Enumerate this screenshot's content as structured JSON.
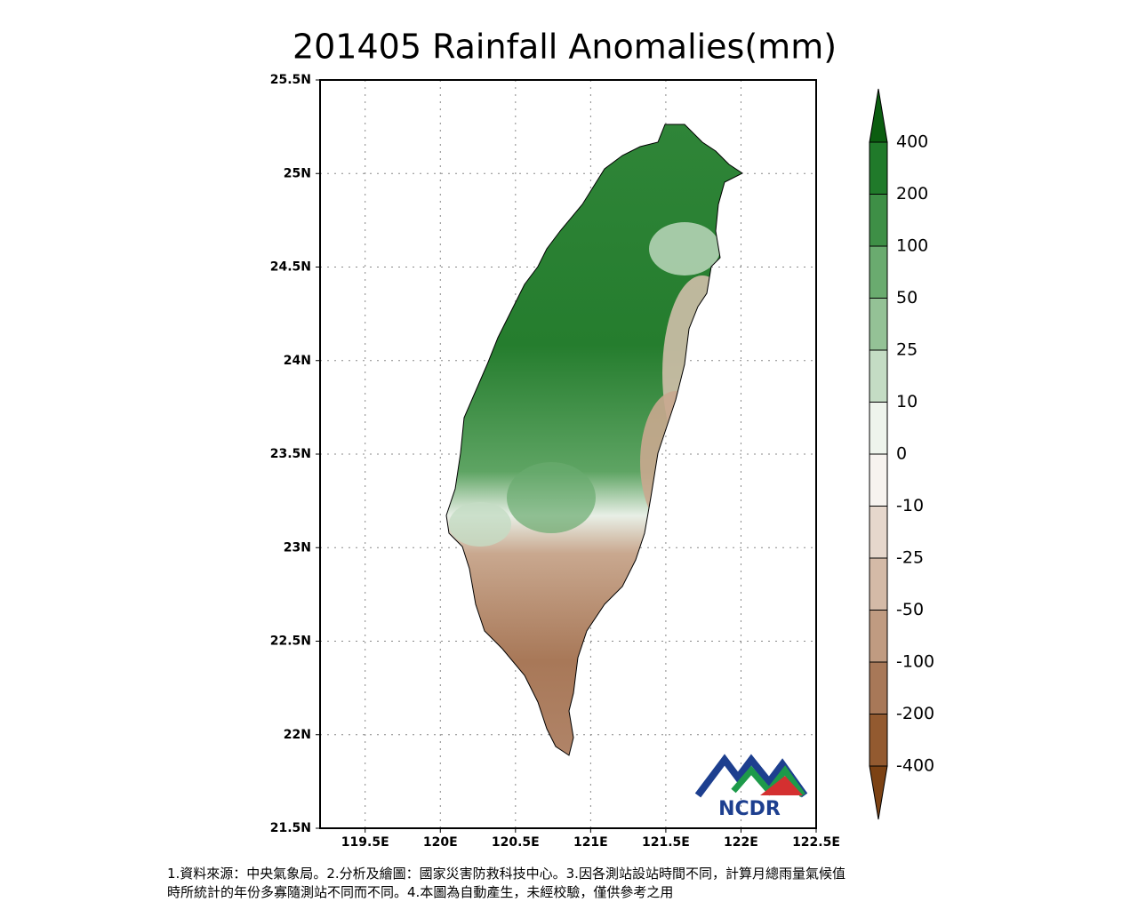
{
  "chart_data": {
    "type": "map",
    "title": "201405 Rainfall Anomalies(mm)",
    "xlim": [
      119.2,
      122.5
    ],
    "ylim": [
      21.5,
      25.5
    ],
    "xticks": [
      {
        "value": 119.5,
        "label": "119.5E"
      },
      {
        "value": 120,
        "label": "120E"
      },
      {
        "value": 120.5,
        "label": "120.5E"
      },
      {
        "value": 121,
        "label": "121E"
      },
      {
        "value": 121.5,
        "label": "121.5E"
      },
      {
        "value": 122,
        "label": "122E"
      },
      {
        "value": 122.5,
        "label": "122.5E"
      }
    ],
    "yticks": [
      {
        "value": 21.5,
        "label": "21.5N"
      },
      {
        "value": 22,
        "label": "22N"
      },
      {
        "value": 22.5,
        "label": "22.5N"
      },
      {
        "value": 23,
        "label": "23N"
      },
      {
        "value": 23.5,
        "label": "23.5N"
      },
      {
        "value": 24,
        "label": "24N"
      },
      {
        "value": 24.5,
        "label": "24.5N"
      },
      {
        "value": 25,
        "label": "25N"
      },
      {
        "value": 25.5,
        "label": "25.5N"
      }
    ],
    "grid": true,
    "colorbar": {
      "levels": [
        400,
        200,
        100,
        50,
        25,
        10,
        0,
        -10,
        -25,
        -50,
        -100,
        -200,
        -400
      ],
      "colors": [
        "#0b5d10",
        "#207a2a",
        "#3e8f46",
        "#6aab6f",
        "#94c296",
        "#c4dcc4",
        "#eef4ec",
        "#f7f3ef",
        "#e6d7cc",
        "#d4baa7",
        "#c09b81",
        "#a87858",
        "#935a30",
        "#7c4214"
      ]
    }
  },
  "logo": "NCDR",
  "footnote": [
    "1.資料來源：中央氣象局。2.分析及繪圖：國家災害防救科技中心。3.因各測站設站時間不同，計算月總雨量氣候值",
    "時所統計的年份多寡隨測站不同而不同。4.本圖為自動產生，未經校驗，僅供參考之用"
  ]
}
